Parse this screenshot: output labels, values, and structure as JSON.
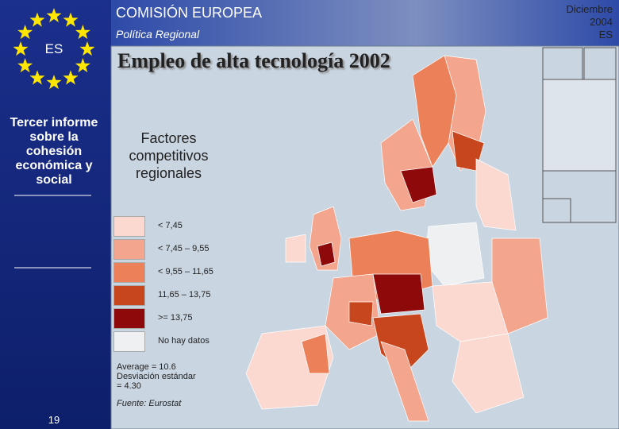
{
  "header": {
    "organization": "COMISIÓN EUROPEA",
    "department": "Política Regional",
    "date": "Diciembre 2004",
    "language": "ES",
    "badge": "ES"
  },
  "sidebar": {
    "report": "Tercer informe sobre la cohesión económica y social",
    "page": "19"
  },
  "title": "Empleo de alta tecnología 2002",
  "subtitle": "Factores competitivos regionales",
  "legend": [
    {
      "label": "< 7,45",
      "color": "#fbd9d0"
    },
    {
      "label": "< 7,45 – 9,55",
      "color": "#f4a58e"
    },
    {
      "label": "< 9,55 – 11,65",
      "color": "#ec8058"
    },
    {
      "label": "11,65 – 13,75",
      "color": "#c8461e"
    },
    {
      "label": ">= 13,75",
      "color": "#8e0a0a"
    },
    {
      "label": "No hay datos",
      "color": "#eef0f2"
    }
  ],
  "stats": {
    "average": "Average = 10.6",
    "deviation": "Desviación estándar = 4.30"
  },
  "source": "Fuente: Eurostat"
}
